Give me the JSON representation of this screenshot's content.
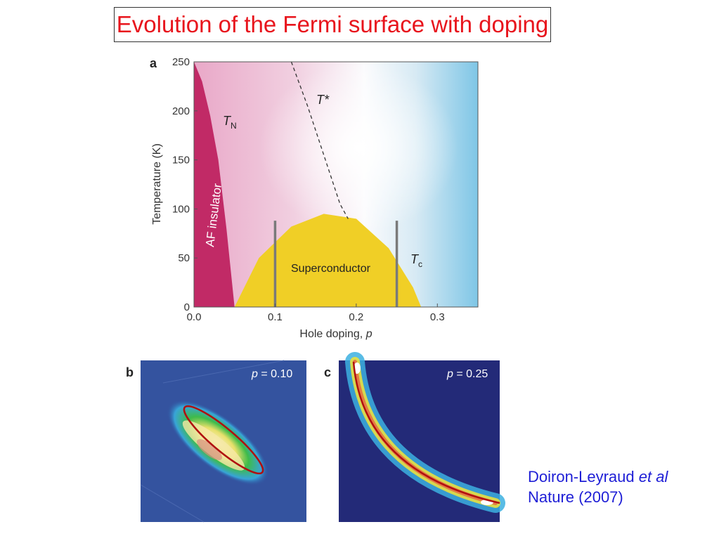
{
  "title": "Evolution of the Fermi surface with doping",
  "panel_a": {
    "label": "a",
    "ylabel": "Temperature (K)",
    "xlabel_text": "Hole doping, ",
    "xlabel_var": "p",
    "y_ticks": [
      "0",
      "50",
      "100",
      "150",
      "200",
      "250"
    ],
    "x_ticks": [
      "0.0",
      "0.1",
      "0.2",
      "0.3"
    ],
    "region_af": "AF insulator",
    "region_sc": "Superconductor",
    "label_tn_main": "T",
    "label_tn_sub": "N",
    "label_tstar": "T*",
    "label_tc_main": "T",
    "label_tc_sub": "c"
  },
  "panel_b": {
    "label": "b",
    "p_var": "p",
    "p_text": " = 0.10"
  },
  "panel_c": {
    "label": "c",
    "p_var": "p",
    "p_text": " = 0.25"
  },
  "citation": {
    "author": "Doiron-Leyraud ",
    "etal": "et al",
    "journal": "Nature (2007)"
  },
  "chart_data": {
    "type": "area",
    "title": "",
    "xlabel": "Hole doping, p",
    "ylabel": "Temperature (K)",
    "xlim": [
      0.0,
      0.35
    ],
    "ylim": [
      0,
      250
    ],
    "x_ticks": [
      0.0,
      0.1,
      0.2,
      0.3
    ],
    "y_ticks": [
      0,
      50,
      100,
      150,
      200,
      250
    ],
    "series": [
      {
        "name": "T_N",
        "x": [
          0.0,
          0.01,
          0.02,
          0.03,
          0.04,
          0.05
        ],
        "y": [
          250,
          230,
          195,
          150,
          80,
          0
        ]
      },
      {
        "name": "T*",
        "x": [
          0.12,
          0.14,
          0.16,
          0.18,
          0.19
        ],
        "y": [
          250,
          205,
          155,
          105,
          90
        ]
      },
      {
        "name": "T_c",
        "x": [
          0.05,
          0.08,
          0.12,
          0.16,
          0.2,
          0.24,
          0.27,
          0.28
        ],
        "y": [
          0,
          50,
          82,
          95,
          90,
          60,
          20,
          0
        ]
      }
    ],
    "annotations": [
      "AF insulator",
      "Superconductor",
      "T_N",
      "T*",
      "T_c"
    ],
    "vertical_markers_x": [
      0.1,
      0.25
    ],
    "grid": false
  }
}
